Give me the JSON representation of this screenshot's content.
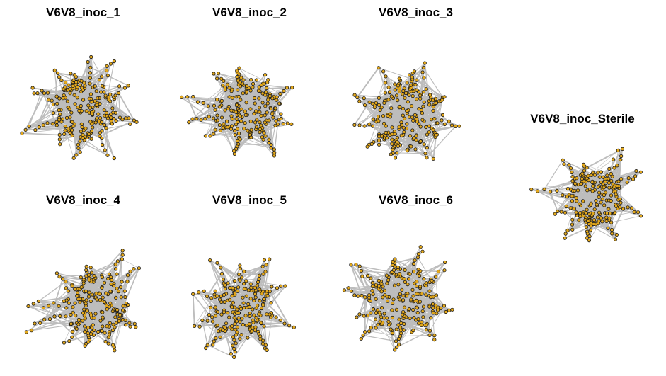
{
  "panels": [
    {
      "id": "p1",
      "title": "V6V8_inoc_1"
    },
    {
      "id": "p2",
      "title": "V6V8_inoc_2"
    },
    {
      "id": "p3",
      "title": "V6V8_inoc_3"
    },
    {
      "id": "p4",
      "title": "V6V8_inoc_4"
    },
    {
      "id": "p5",
      "title": "V6V8_inoc_5"
    },
    {
      "id": "p6",
      "title": "V6V8_inoc_6"
    },
    {
      "id": "p7",
      "title": "V6V8_inoc_Sterile"
    }
  ],
  "style": {
    "node_fill": "#e3a81c",
    "node_stroke": "#1a1a1a",
    "edge_color": "#bdbdbd"
  }
}
